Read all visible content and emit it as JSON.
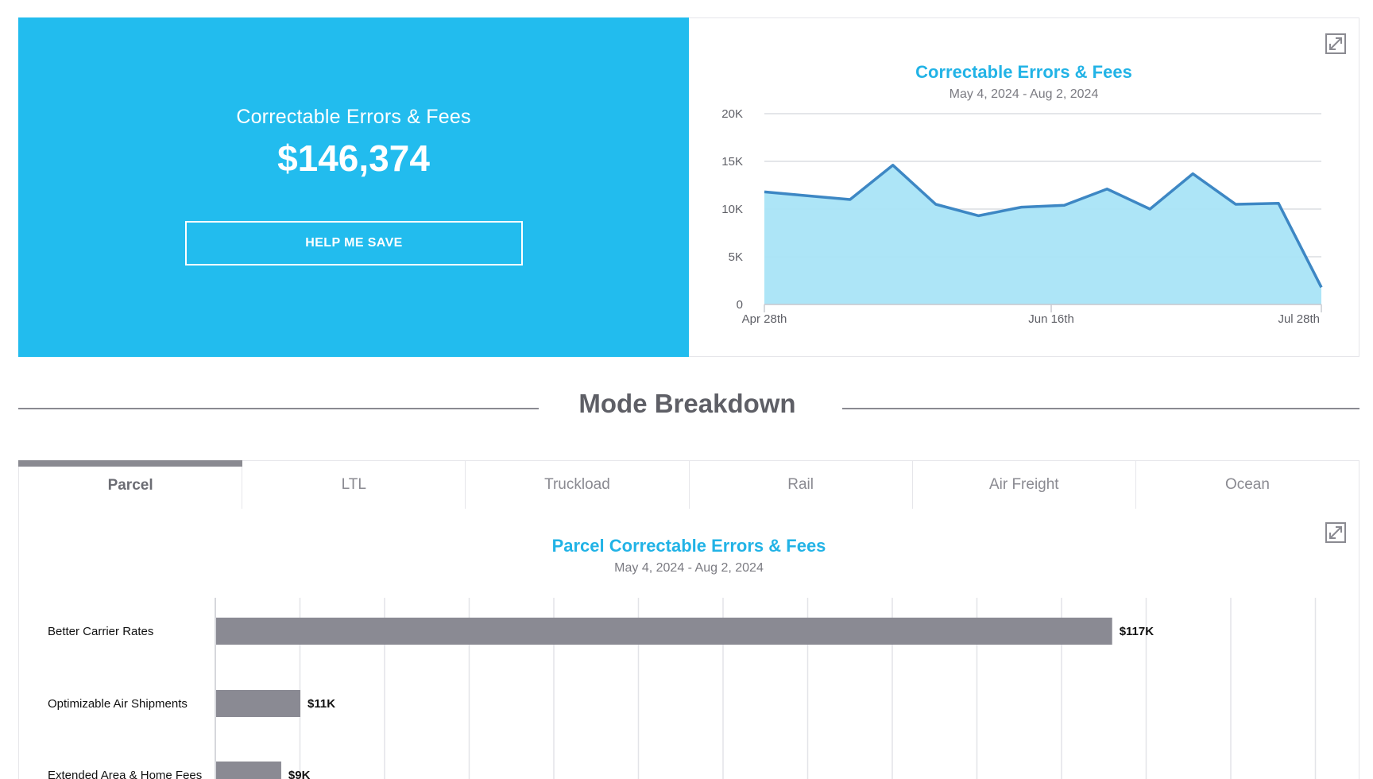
{
  "hero": {
    "title": "Correctable Errors & Fees",
    "amount": "$146,374",
    "button_label": "HELP ME SAVE"
  },
  "top_chart": {
    "expand_icon": "expand-icon",
    "chart_data": {
      "type": "area",
      "title": "Correctable Errors & Fees",
      "subtitle": "May 4, 2024 - Aug 2, 2024",
      "x_labels": [
        "Apr 28th",
        "Jun 16th",
        "Jul 28th"
      ],
      "y_ticks": [
        "0",
        "5K",
        "10K",
        "15K",
        "20K"
      ],
      "ylim": [
        0,
        20000
      ],
      "series": [
        {
          "values": [
            11800,
            11400,
            11000,
            14600,
            10500,
            9300,
            10200,
            10400,
            12100,
            10000,
            13700,
            10500,
            10600,
            1800
          ]
        }
      ],
      "grid": true,
      "colors": {
        "line": "#3d87c4",
        "fill": "#a9e4f7"
      }
    }
  },
  "section": {
    "title": "Mode Breakdown"
  },
  "tabs": [
    {
      "label": "Parcel",
      "active": true
    },
    {
      "label": "LTL"
    },
    {
      "label": "Truckload"
    },
    {
      "label": "Rail"
    },
    {
      "label": "Air Freight"
    },
    {
      "label": "Ocean"
    }
  ],
  "bottom_chart": {
    "expand_icon": "expand-icon",
    "chart_data": {
      "type": "bar",
      "orientation": "horizontal",
      "title": "Parcel Correctable Errors & Fees",
      "subtitle": "May 4, 2024 - Aug 2, 2024",
      "categories": [
        "Better Carrier Rates",
        "Optimizable Air Shipments",
        "Extended Area & Home Fees"
      ],
      "values": [
        117,
        11,
        8.5
      ],
      "value_labels": [
        "$117K",
        "$11K",
        "$9K"
      ],
      "unit": "K",
      "xlim": [
        0,
        130
      ],
      "grid": true,
      "colors": {
        "bar": "#8a8a93"
      }
    }
  },
  "colors": {
    "accent": "#22bcee",
    "title_blue": "#22b3e6",
    "gray_text": "#5e5f66"
  }
}
